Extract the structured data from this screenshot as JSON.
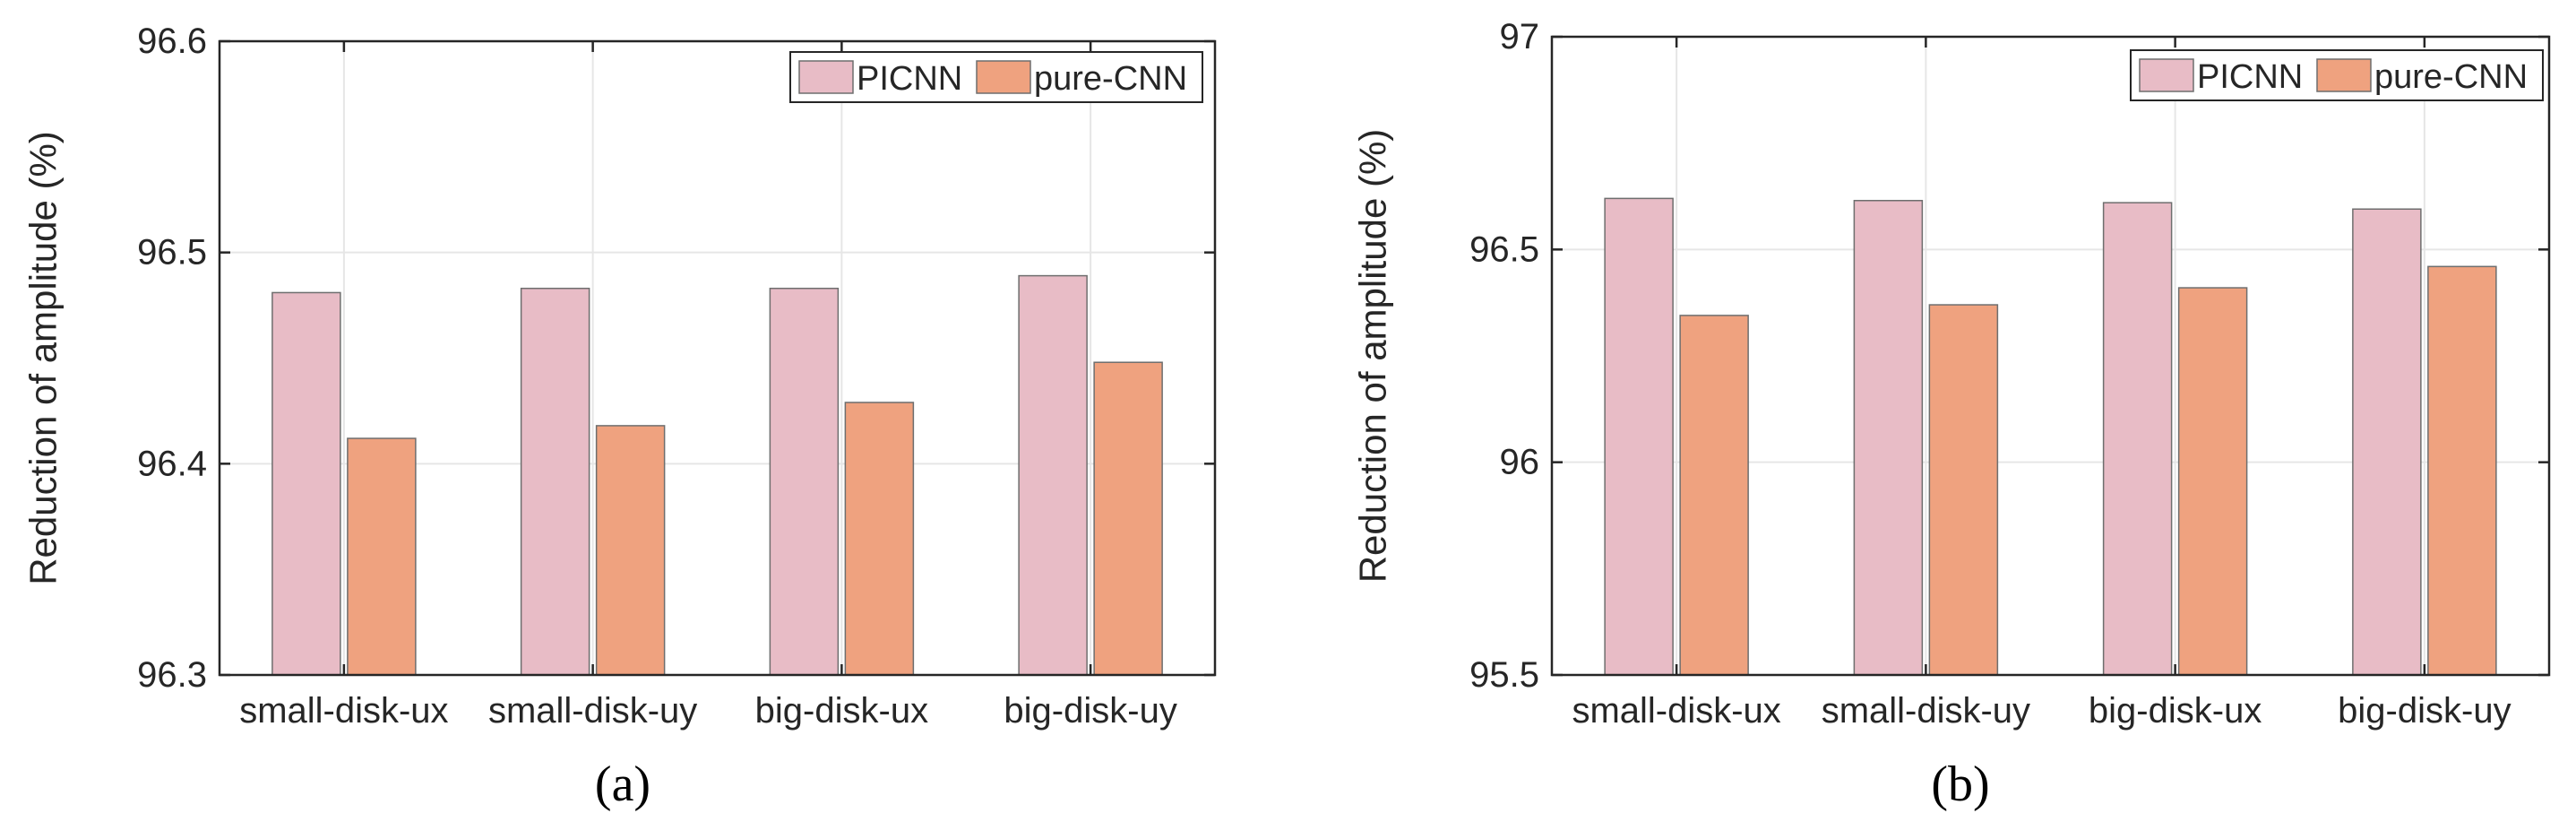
{
  "chart_data": [
    {
      "type": "bar",
      "panel_label": "(a)",
      "ylabel": "Reduction of amplitude (%)",
      "xlabel": "",
      "categories": [
        "small-disk-ux",
        "small-disk-uy",
        "big-disk-ux",
        "big-disk-uy"
      ],
      "series": [
        {
          "name": "PICNN",
          "values": [
            96.481,
            96.483,
            96.483,
            96.489
          ]
        },
        {
          "name": "pure-CNN",
          "values": [
            96.412,
            96.418,
            96.429,
            96.448
          ]
        }
      ],
      "ylim": [
        96.3,
        96.6
      ],
      "yticks": [
        96.3,
        96.4,
        96.5,
        96.6
      ],
      "ytick_labels": [
        "96.3",
        "96.4",
        "96.5",
        "96.6"
      ],
      "grid": true,
      "legend_position": "top-right"
    },
    {
      "type": "bar",
      "panel_label": "(b)",
      "ylabel": "Reduction of amplitude (%)",
      "xlabel": "",
      "categories": [
        "small-disk-ux",
        "small-disk-uy",
        "big-disk-ux",
        "big-disk-uy"
      ],
      "series": [
        {
          "name": "PICNN",
          "values": [
            96.62,
            96.615,
            96.61,
            96.595
          ]
        },
        {
          "name": "pure-CNN",
          "values": [
            96.345,
            96.37,
            96.41,
            96.46
          ]
        }
      ],
      "ylim": [
        95.5,
        97
      ],
      "yticks": [
        95.5,
        96,
        96.5,
        97
      ],
      "ytick_labels": [
        "95.5",
        "96",
        "96.5",
        "97"
      ],
      "grid": true,
      "legend_position": "top-right"
    }
  ],
  "colors": {
    "PICNN": "#e8bcc6",
    "pure-CNN": "#efa27f",
    "bar_edge": "#6e6e6e",
    "axis": "#262626",
    "grid": "#e6e6e6",
    "text": "#262626"
  }
}
